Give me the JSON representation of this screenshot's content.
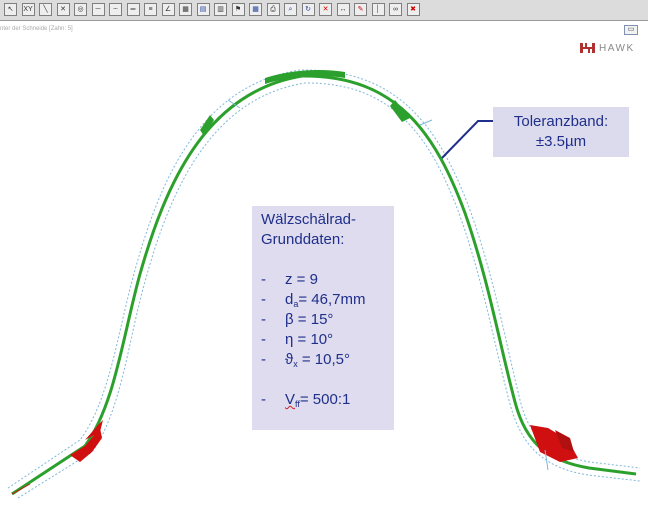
{
  "toolbar": {
    "buttons": [
      {
        "name": "cursor-icon",
        "glyph": "↖"
      },
      {
        "name": "xy-icon",
        "glyph": "XY"
      },
      {
        "name": "diagonal-icon",
        "glyph": "╲"
      },
      {
        "name": "cross-icon",
        "glyph": "✕"
      },
      {
        "name": "circle-target-icon",
        "glyph": "◎"
      },
      {
        "name": "line-horizontal-icon",
        "glyph": "─"
      },
      {
        "name": "line-dash-icon",
        "glyph": "┄"
      },
      {
        "name": "parallel-lines-icon",
        "glyph": "═"
      },
      {
        "name": "equal-icon",
        "glyph": "≡"
      },
      {
        "name": "angle-icon",
        "glyph": "∠"
      },
      {
        "name": "grid-icon",
        "glyph": "▦"
      },
      {
        "name": "chart-icon",
        "glyph": "▤"
      },
      {
        "name": "layers-icon",
        "glyph": "▥"
      },
      {
        "name": "flag-icon",
        "glyph": "⚑"
      },
      {
        "name": "table-icon",
        "glyph": "▦"
      },
      {
        "name": "print-icon",
        "glyph": "⎙"
      },
      {
        "name": "zoom-icon",
        "glyph": "⌕"
      },
      {
        "name": "rotate-icon",
        "glyph": "↻"
      },
      {
        "name": "close-red-icon",
        "glyph": "✕"
      },
      {
        "name": "arrows-horizontal-icon",
        "glyph": "↔"
      },
      {
        "name": "pencil-icon",
        "glyph": "✎"
      },
      {
        "name": "marker-icon",
        "glyph": "│"
      },
      {
        "name": "infinity-icon",
        "glyph": "∞"
      },
      {
        "name": "exit-icon",
        "glyph": "✖"
      }
    ]
  },
  "subtitle": "nter der Schneide [Zahn: 5]",
  "window_button": "▭",
  "logo": {
    "text": "HAWK",
    "color": "#b03030"
  },
  "tolerance_box": {
    "line1": "Toleranzband:",
    "line2": "±3.5µm"
  },
  "data_box": {
    "title1": "Wälzschälrad-",
    "title2": "Grunddaten:",
    "items": [
      {
        "sym": "z",
        "sub": "",
        "val": " = 9"
      },
      {
        "sym": "d",
        "sub": "a",
        "val": "= 46,7mm"
      },
      {
        "sym": "β",
        "sub": "",
        "val": " = 15°"
      },
      {
        "sym": "η",
        "sub": "",
        "val": "  = 10°"
      },
      {
        "sym": "ϑ",
        "sub": "x",
        "val": " = 10,5°"
      }
    ],
    "ratio": {
      "sym": "V",
      "sub": "ff",
      "val": "= 500:1"
    },
    "dash": "-"
  },
  "colors": {
    "profile_green": "#2ca02c",
    "deviation_red": "#d01010",
    "tolerance_band": "#7fb8d8",
    "text_blue": "#1f2f8a",
    "box_bg": "#dedcee"
  }
}
